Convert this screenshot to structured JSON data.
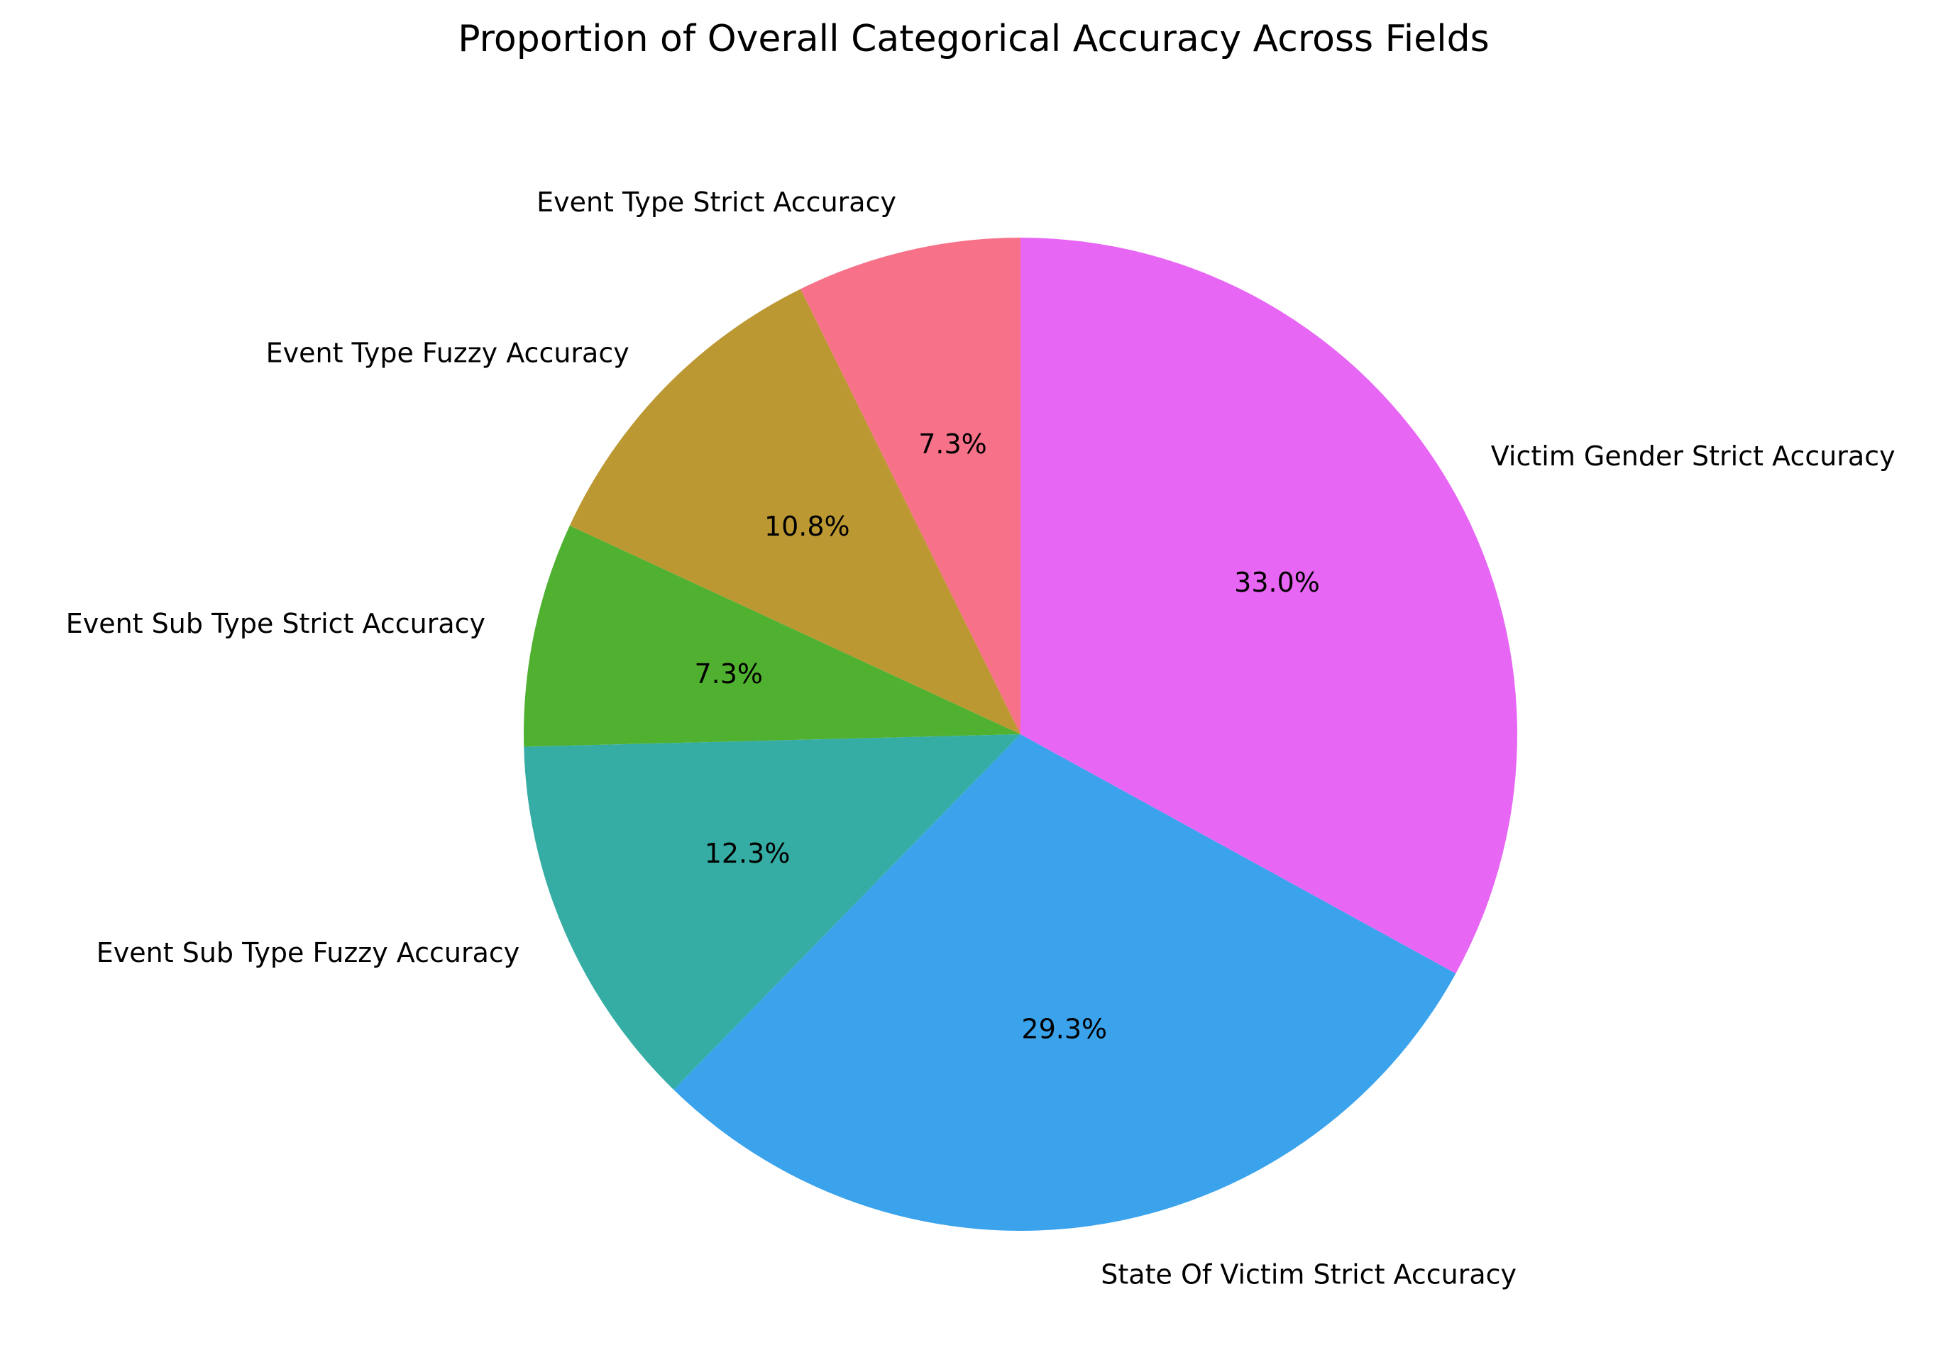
{
  "chart_data": {
    "type": "pie",
    "title": "Proportion of Overall Categorical Accuracy Across Fields",
    "slices": [
      {
        "label": "Event Type Strict Accuracy",
        "value": 7.3,
        "pct_label": "7.3%",
        "color": "#f77189"
      },
      {
        "label": "Event Type Fuzzy Accuracy",
        "value": 10.8,
        "pct_label": "10.8%",
        "color": "#bb9832"
      },
      {
        "label": "Event Sub Type Strict Accuracy",
        "value": 7.3,
        "pct_label": "7.3%",
        "color": "#50b131"
      },
      {
        "label": "Event Sub Type Fuzzy Accuracy",
        "value": 12.3,
        "pct_label": "12.3%",
        "color": "#36ada4"
      },
      {
        "label": "State Of Victim Strict Accuracy",
        "value": 29.3,
        "pct_label": "29.3%",
        "color": "#3ba3ec"
      },
      {
        "label": "Victim Gender Strict Accuracy",
        "value": 33.0,
        "pct_label": "33.0%",
        "color": "#e866f4"
      }
    ],
    "start_angle_deg": 90,
    "direction": "counterclockwise",
    "legend": "none"
  }
}
